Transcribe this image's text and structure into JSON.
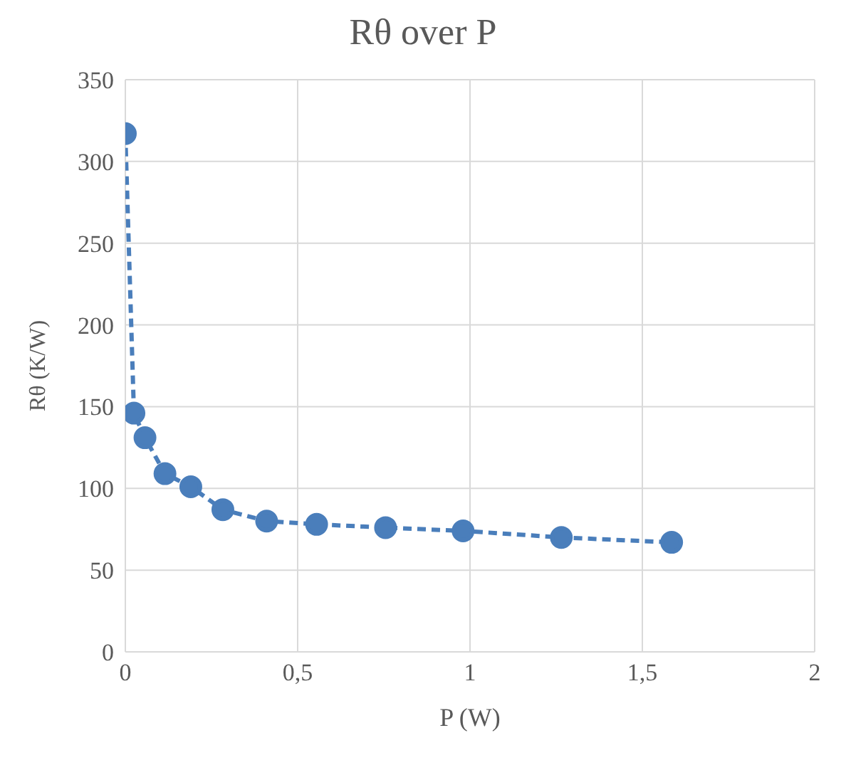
{
  "chart_data": {
    "type": "line",
    "title": "Rθ over P",
    "xlabel": "P (W)",
    "ylabel": "Rθ (K/W)",
    "x": [
      0.0,
      0.025,
      0.057,
      0.115,
      0.19,
      0.283,
      0.41,
      0.555,
      0.755,
      0.98,
      1.265,
      1.585
    ],
    "series": [
      {
        "color": "#4a7ebb",
        "values": [
          317,
          146,
          131,
          109,
          101,
          87,
          80,
          78,
          76,
          74,
          70,
          67
        ]
      }
    ],
    "xlim": [
      0,
      2
    ],
    "xticks": [
      0,
      {
        "value": 0.5,
        "label": "0,5"
      },
      1,
      {
        "value": 1.5,
        "label": "1,5"
      },
      2
    ],
    "ylim": [
      0,
      350
    ],
    "yticks": [
      0,
      50,
      100,
      150,
      200,
      250,
      300,
      350
    ],
    "grid": true,
    "marker": "circle",
    "line_style": "dashed",
    "legend": false
  }
}
